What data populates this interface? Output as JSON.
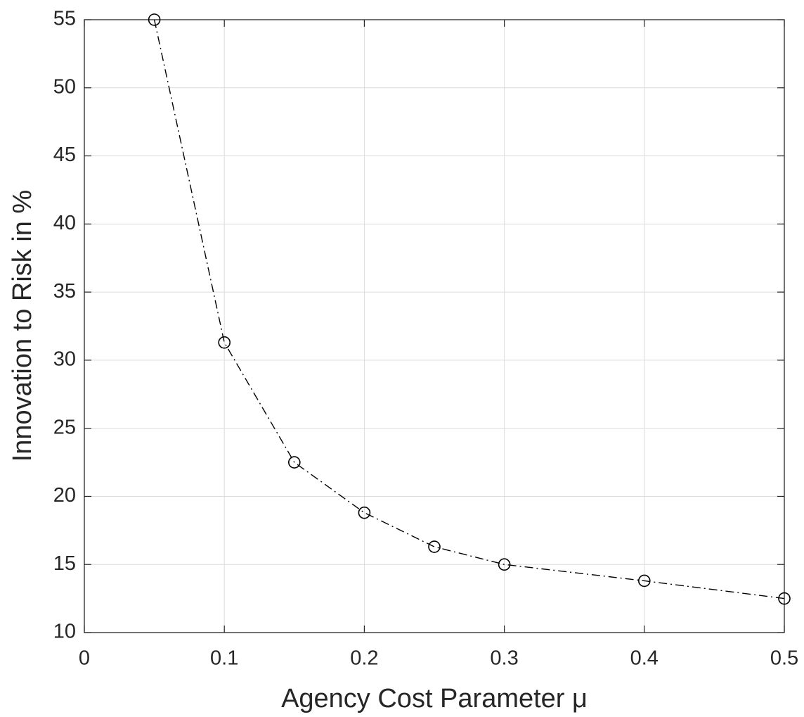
{
  "chart_data": {
    "type": "line",
    "x_label": "Agency Cost Parameter μ",
    "y_label": "Innovation to Risk in %",
    "series": [
      {
        "color": "#000000",
        "x": [
          0.05,
          0.1,
          0.15,
          0.2,
          0.25,
          0.3,
          0.4,
          0.5
        ],
        "values": [
          55.0,
          31.3,
          22.5,
          18.8,
          16.3,
          15.0,
          13.8,
          12.5
        ]
      }
    ],
    "xlim": [
      0,
      0.5
    ],
    "xticks": [
      0,
      0.1,
      0.2,
      0.3,
      0.4,
      0.5
    ],
    "ylim": [
      10,
      55
    ],
    "yticks": [
      10,
      15,
      20,
      25,
      30,
      35,
      40,
      45,
      50,
      55
    ],
    "grid": true
  }
}
